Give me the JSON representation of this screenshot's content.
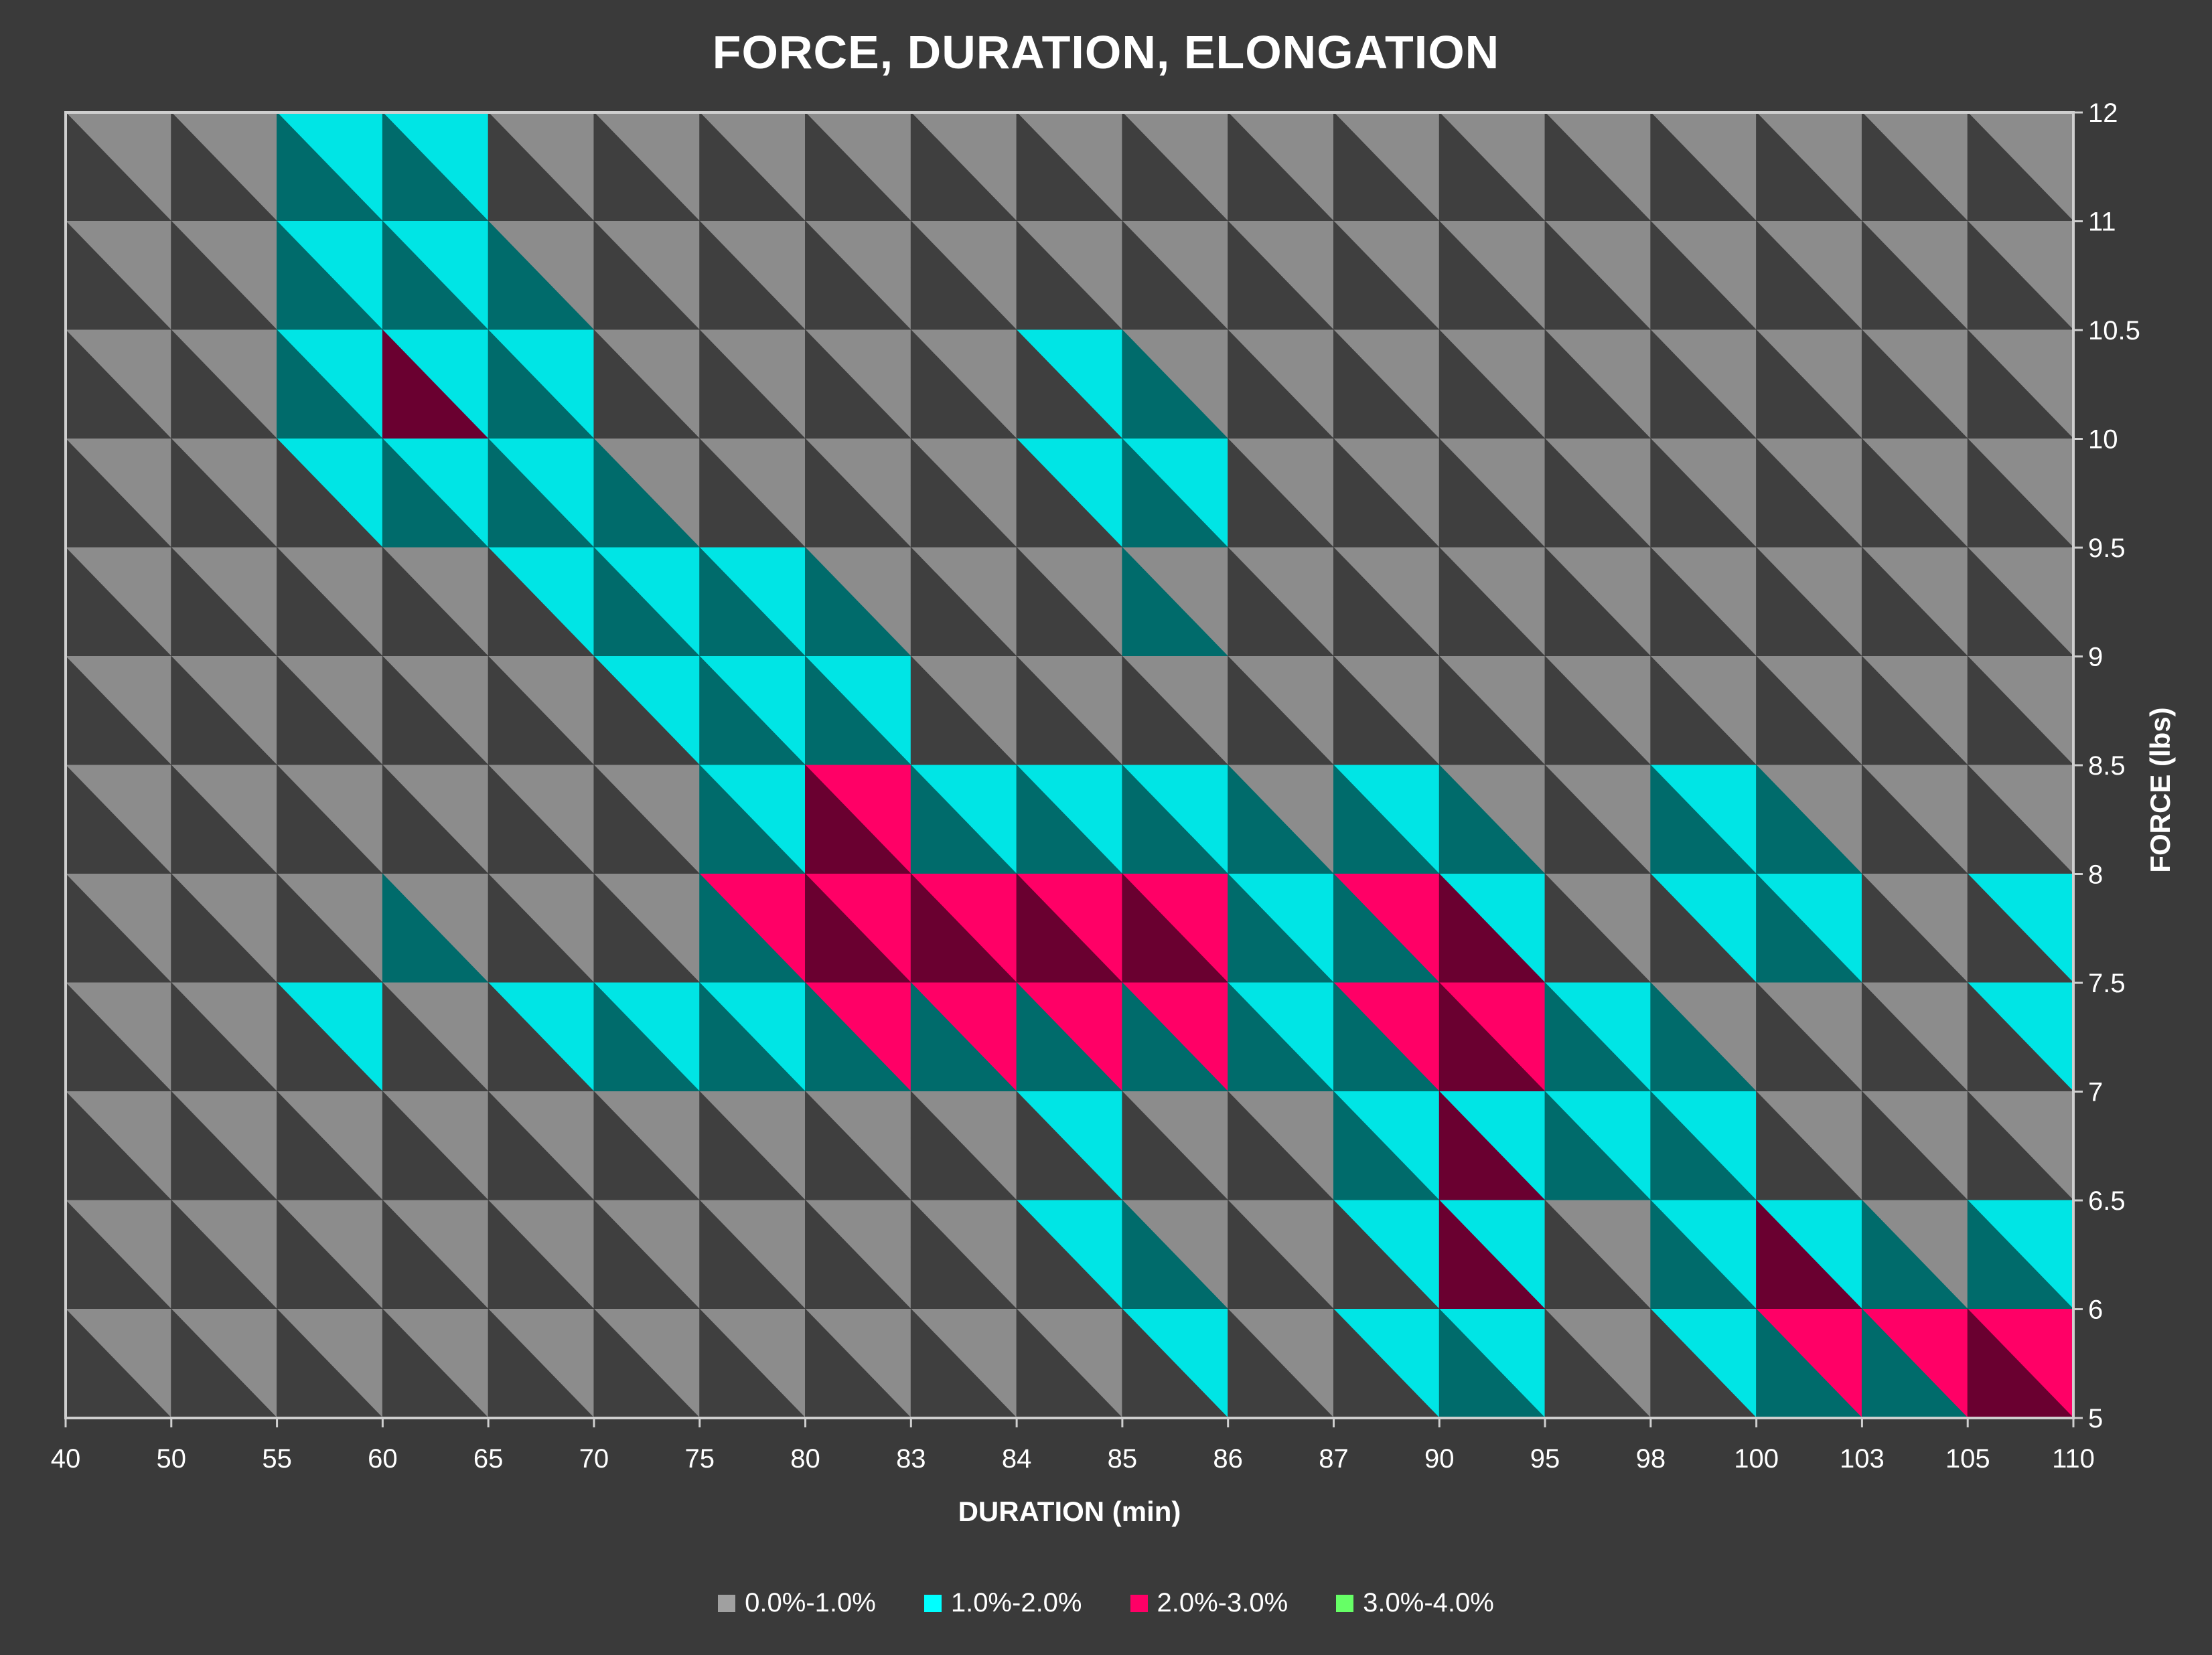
{
  "chart_data": {
    "type": "heatmap",
    "subtype": "surface-contour",
    "title": "FORCE, DURATION, ELONGATION",
    "xlabel": "DURATION (min)",
    "ylabel": "FORCE (lbs)",
    "x_ticks": [
      "40",
      "50",
      "55",
      "60",
      "65",
      "70",
      "75",
      "80",
      "83",
      "84",
      "85",
      "86",
      "87",
      "90",
      "95",
      "98",
      "100",
      "103",
      "105",
      "110"
    ],
    "y_ticks": [
      "5",
      "6",
      "6.5",
      "7",
      "7.5",
      "8",
      "8.5",
      "9",
      "9.5",
      "10",
      "10.5",
      "11",
      "12"
    ],
    "legend_position": "bottom",
    "legend": [
      {
        "label": "0.0%-1.0%",
        "color": "#a0a0a0"
      },
      {
        "label": "1.0%-2.0%",
        "color": "#00ffff"
      },
      {
        "label": "2.0%-3.0%",
        "color": "#ff0066"
      },
      {
        "label": "3.0%-4.0%",
        "color": "#66ff66"
      }
    ],
    "band_colors": [
      "#8c8c8c",
      "#00e5e5",
      "#ff0066",
      "#66ff66"
    ],
    "band_shades": [
      "#3f3f3f",
      "#006b6b",
      "#6a0030",
      "#2e7a2e"
    ],
    "elongation_grid_note": "rows = force ticks (top 12 to bottom 5), cols = duration ticks (40 to 110), values = elongation %",
    "elongation_grid": [
      [
        0.3,
        0.0,
        1.0,
        1.5,
        0.8,
        0.5,
        0.5,
        0.5,
        0.5,
        0.5,
        0.5,
        0.5,
        0.5,
        0.5,
        0.5,
        0.5,
        0.5,
        0.5,
        0.5,
        0.5
      ],
      [
        0.5,
        0.0,
        1.0,
        1.6,
        1.2,
        0.6,
        0.5,
        0.5,
        0.5,
        0.5,
        0.5,
        0.5,
        0.5,
        0.5,
        0.5,
        0.5,
        0.5,
        0.5,
        0.5,
        0.5
      ],
      [
        0.5,
        0.3,
        1.0,
        2.3,
        1.5,
        0.5,
        0.0,
        1.2,
        0.5,
        0.0,
        1.5,
        0.5,
        0.5,
        0.5,
        0.5,
        0.5,
        0.5,
        0.5,
        0.5,
        0.5
      ],
      [
        0.5,
        0.5,
        1.0,
        2.2,
        2.0,
        1.0,
        0.5,
        0.5,
        0.5,
        0.5,
        2.3,
        0.5,
        0.5,
        0.5,
        0.5,
        0.5,
        0.5,
        0.5,
        0.5,
        0.5
      ],
      [
        0.0,
        1.3,
        0.5,
        0.5,
        1.0,
        2.3,
        1.2,
        1.0,
        0.5,
        0.0,
        1.2,
        0.8,
        0.5,
        0.5,
        0.5,
        0.5,
        0.5,
        0.5,
        0.5,
        0.5
      ],
      [
        0.5,
        0.5,
        0.5,
        0.5,
        0.0,
        1.0,
        1.8,
        1.5,
        0.8,
        0.0,
        1.6,
        0.5,
        0.5,
        0.5,
        0.5,
        0.5,
        0.5,
        0.5,
        0.5,
        0.5
      ],
      [
        0.5,
        0.5,
        0.5,
        0.5,
        0.5,
        0.5,
        0.5,
        2.5,
        1.5,
        0.0,
        0.5,
        0.5,
        0.0,
        0.5,
        0.5,
        0.5,
        0.5,
        0.5,
        0.5,
        0.5
      ],
      [
        0.5,
        0.5,
        0.0,
        0.5,
        0.0,
        0.5,
        1.3,
        2.8,
        2.5,
        1.5,
        2.5,
        2.0,
        1.0,
        2.5,
        1.0,
        0.5,
        2.6,
        0.5,
        0.0,
        1.5
      ],
      [
        0.5,
        0.5,
        1.0,
        1.5,
        1.0,
        1.3,
        0.8,
        2.9,
        2.7,
        2.5,
        3.3,
        2.5,
        1.0,
        3.2,
        1.0,
        0.5,
        0.5,
        0.5,
        0.0,
        2.5
      ],
      [
        0.5,
        0.5,
        0.0,
        1.0,
        0.0,
        1.0,
        1.2,
        1.0,
        1.0,
        1.0,
        1.5,
        0.5,
        0.5,
        2.0,
        1.8,
        2.0,
        1.2,
        0.5,
        0.0,
        0.5
      ],
      [
        0.5,
        0.0,
        0.0,
        0.5,
        0.5,
        0.5,
        0.5,
        0.5,
        0.5,
        0.0,
        0.5,
        0.5,
        0.0,
        3.0,
        1.2,
        0.5,
        0.5,
        0.0,
        0.0,
        2.0
      ],
      [
        0.0,
        0.0,
        0.5,
        0.5,
        0.5,
        0.5,
        0.5,
        0.5,
        0.5,
        0.0,
        2.5,
        0.5,
        0.0,
        2.5,
        0.5,
        0.0,
        3.0,
        2.5,
        2.5,
        1.5
      ],
      [
        0.5,
        0.5,
        0.5,
        0.5,
        0.5,
        0.5,
        0.5,
        0.5,
        0.5,
        0.0,
        0.0,
        0.0,
        0.0,
        1.5,
        0.0,
        0.0,
        0.8,
        0.8,
        1.2,
        3.5
      ]
    ]
  }
}
